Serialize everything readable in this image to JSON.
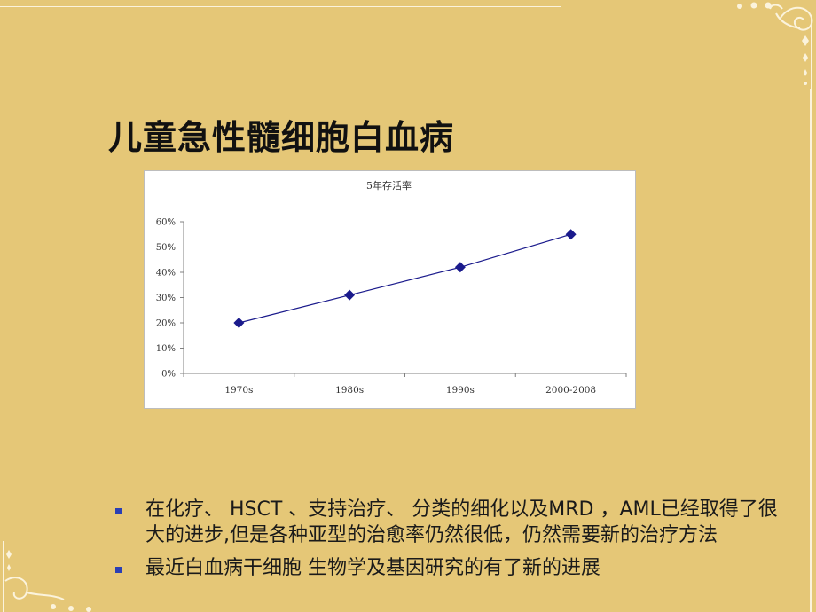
{
  "slide": {
    "title": "儿童急性髓细胞白血病"
  },
  "chart_data": {
    "type": "line",
    "title": "5年存活率",
    "xlabel": "",
    "ylabel": "",
    "categories": [
      "1970s",
      "1980s",
      "1990s",
      "2000-2008"
    ],
    "values": [
      20,
      31,
      42,
      55
    ],
    "y_ticks": [
      "0%",
      "10%",
      "20%",
      "30%",
      "40%",
      "50%",
      "60%"
    ],
    "ylim": [
      0,
      60
    ],
    "grid": false,
    "legend": "none",
    "marker": "diamond",
    "series_color": "#1a1a8c"
  },
  "bullets": [
    {
      "text": "在化疗、 HSCT 、支持治疗、 分类的细化以及MRD ，AML已经取得了很大的进步,但是各种亚型的治愈率仍然很低，仍然需要新的治疗方法"
    },
    {
      "text": "最近白血病干细胞 生物学及基因研究的有了新的进展"
    }
  ],
  "colors": {
    "background": "#e5c777",
    "bullet": "#2a3fb4",
    "ornament": "#fbf3dc"
  }
}
